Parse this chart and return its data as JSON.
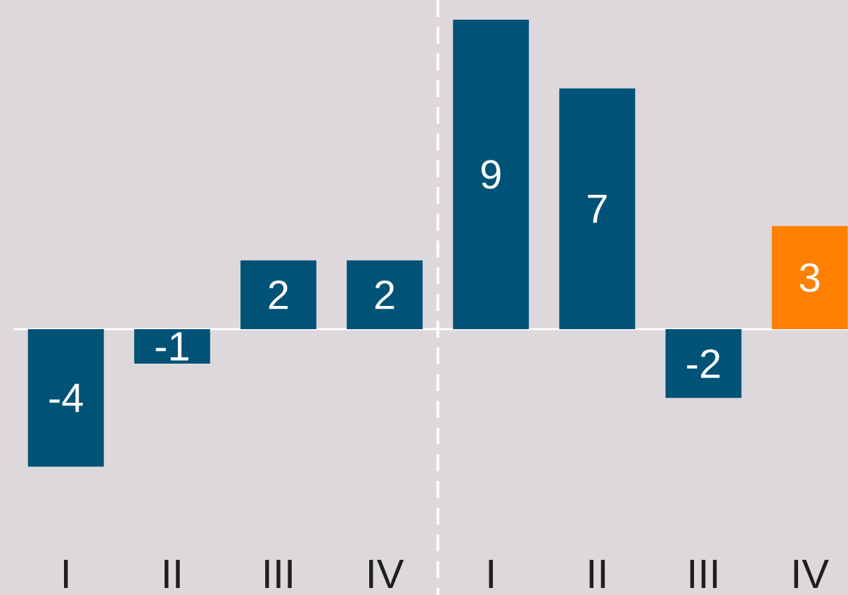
{
  "chart_data": {
    "type": "bar",
    "categories": [
      "I",
      "II",
      "III",
      "IV",
      "I",
      "II",
      "III",
      "IV"
    ],
    "values": [
      -4,
      -1,
      2,
      2,
      9,
      7,
      -2,
      3
    ],
    "colors": [
      "#005277",
      "#005277",
      "#005277",
      "#005277",
      "#005277",
      "#005277",
      "#005277",
      "#ff7f00"
    ],
    "data_labels": true
  }
}
